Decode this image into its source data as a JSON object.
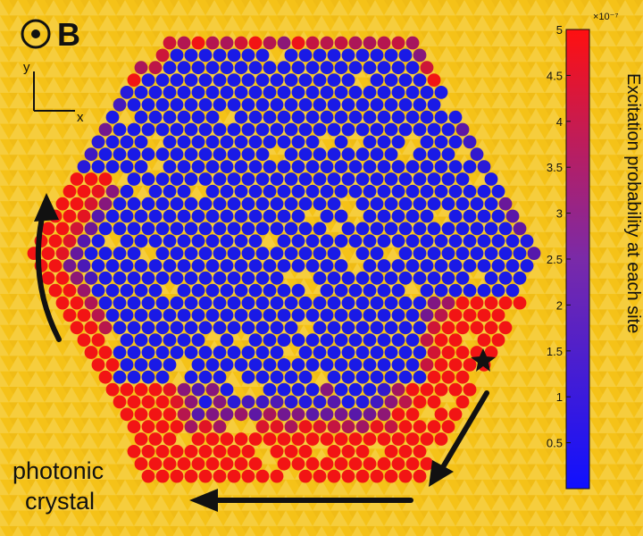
{
  "field_symbol": "B",
  "axis_y_label": "y",
  "axis_x_label": "x",
  "region_label_line1": "photonic",
  "region_label_line2": "crystal",
  "colorbar": {
    "title": "Excitation probability  at each site",
    "multiplier": "×10⁻⁷",
    "min": 0,
    "max": 5,
    "ticks": [
      "0.5",
      "1",
      "1.5",
      "2",
      "2.5",
      "3",
      "3.5",
      "4",
      "4.5",
      "5"
    ],
    "color_low": "#1010ff",
    "color_high": "#ff1010"
  },
  "colors": {
    "background": "#f5c218",
    "site_low": "#1a1ae6",
    "site_high": "#f21414",
    "arrow": "#111111"
  }
}
